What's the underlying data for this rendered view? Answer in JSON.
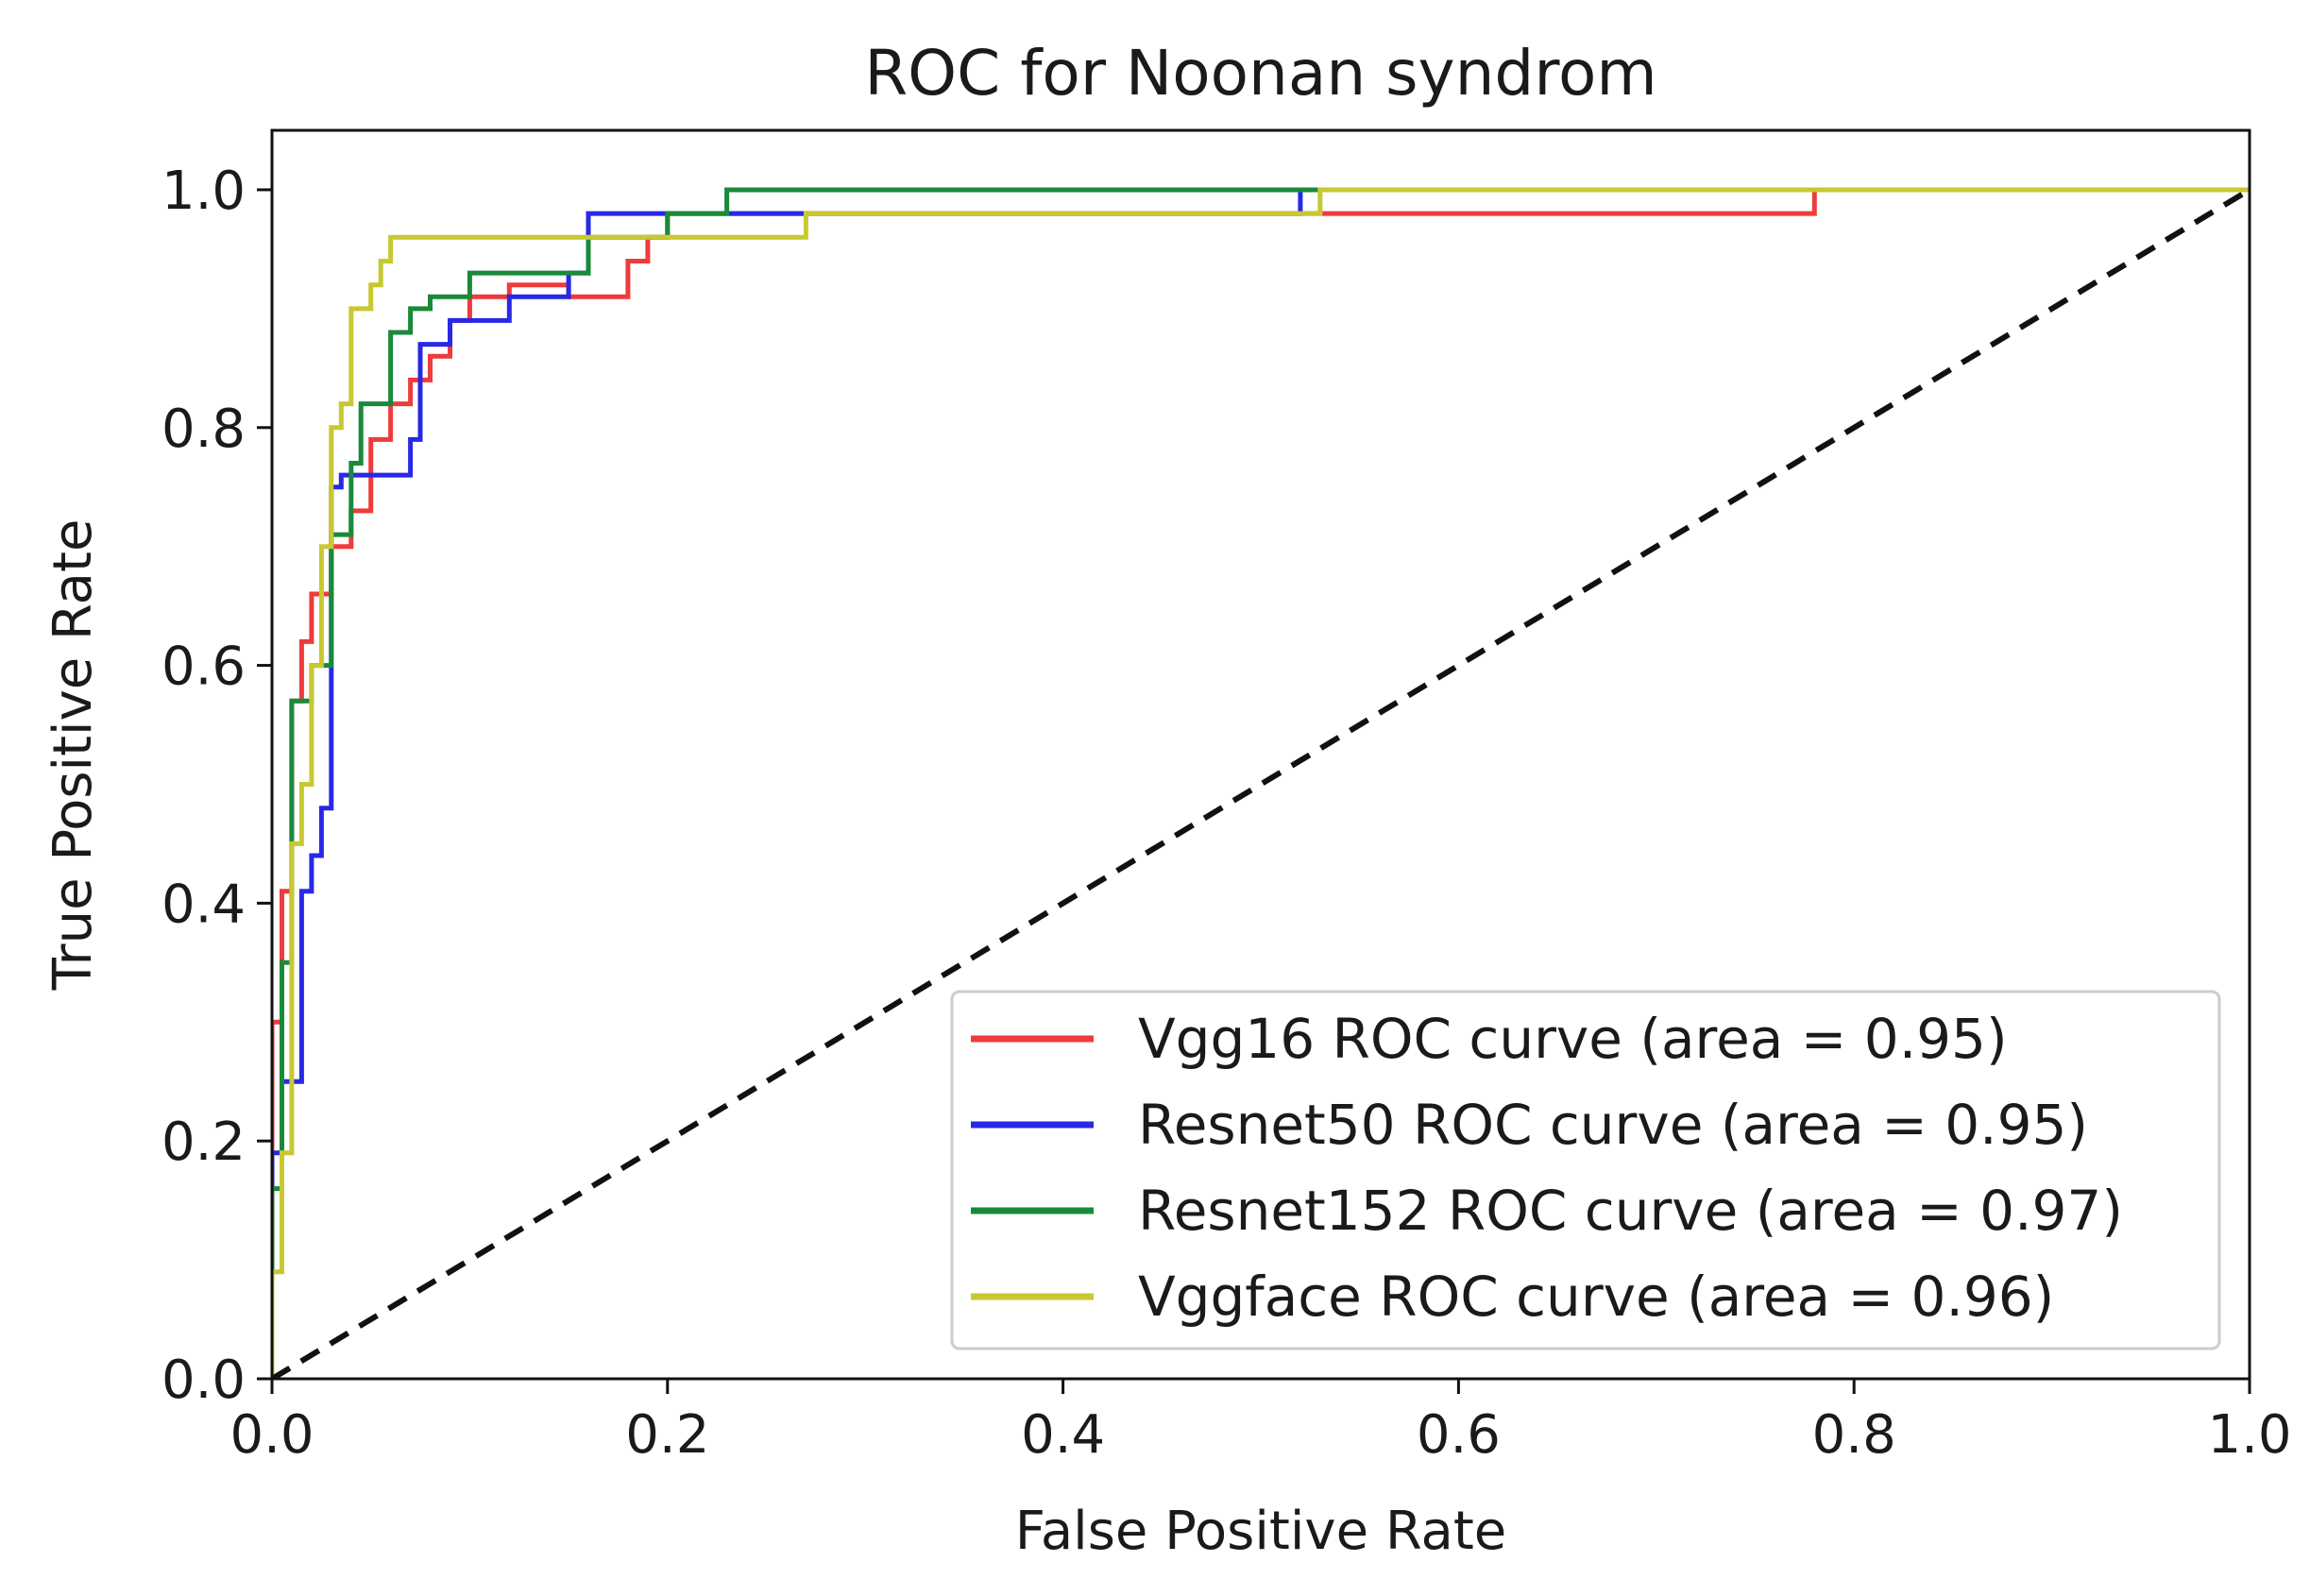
{
  "chart_data": {
    "type": "line",
    "title": "ROC for Noonan syndrom",
    "xlabel": "False Positive Rate",
    "ylabel": "True Positive Rate",
    "xlim": [
      0.0,
      1.0
    ],
    "ylim": [
      0.0,
      1.05
    ],
    "grid": false,
    "legend_position": "lower-right",
    "x_ticks": [
      "0.0",
      "0.2",
      "0.4",
      "0.6",
      "0.8",
      "1.0"
    ],
    "y_ticks": [
      "0.0",
      "0.2",
      "0.4",
      "0.6",
      "0.8",
      "1.0"
    ],
    "series": [
      {
        "name": "Vgg16 ROC curve (area = 0.95)",
        "color": "#ee3b3b",
        "x": [
          0,
          0,
          0.005,
          0.005,
          0.01,
          0.01,
          0.015,
          0.015,
          0.02,
          0.02,
          0.03,
          0.03,
          0.04,
          0.04,
          0.05,
          0.05,
          0.06,
          0.06,
          0.07,
          0.07,
          0.08,
          0.08,
          0.09,
          0.09,
          0.1,
          0.1,
          0.12,
          0.12,
          0.15,
          0.15,
          0.18,
          0.18,
          0.19,
          0.19,
          0.2,
          0.2,
          0.52,
          0.52,
          0.78,
          0.78,
          1.0
        ],
        "y": [
          0,
          0.3,
          0.3,
          0.41,
          0.41,
          0.57,
          0.57,
          0.62,
          0.62,
          0.66,
          0.66,
          0.7,
          0.7,
          0.73,
          0.73,
          0.79,
          0.79,
          0.82,
          0.82,
          0.84,
          0.84,
          0.86,
          0.86,
          0.89,
          0.89,
          0.91,
          0.91,
          0.92,
          0.92,
          0.91,
          0.91,
          0.94,
          0.94,
          0.96,
          0.96,
          0.98,
          0.98,
          0.98,
          0.98,
          1.0,
          1.0
        ]
      },
      {
        "name": "Resnet50 ROC curve (area = 0.95)",
        "color": "#2828e6",
        "x": [
          0,
          0,
          0.005,
          0.005,
          0.015,
          0.015,
          0.02,
          0.02,
          0.025,
          0.025,
          0.03,
          0.03,
          0.035,
          0.035,
          0.06,
          0.06,
          0.07,
          0.07,
          0.075,
          0.075,
          0.09,
          0.09,
          0.12,
          0.12,
          0.15,
          0.15,
          0.16,
          0.16,
          0.2,
          0.2,
          0.26,
          0.26,
          0.52,
          0.52,
          1.0
        ],
        "y": [
          0,
          0.19,
          0.19,
          0.25,
          0.25,
          0.41,
          0.41,
          0.44,
          0.44,
          0.48,
          0.48,
          0.75,
          0.75,
          0.76,
          0.76,
          0.76,
          0.76,
          0.79,
          0.79,
          0.87,
          0.87,
          0.89,
          0.89,
          0.91,
          0.91,
          0.93,
          0.93,
          0.98,
          0.98,
          0.98,
          0.98,
          0.98,
          0.98,
          1.0,
          1.0
        ]
      },
      {
        "name": "Resnet152 ROC curve (area = 0.97)",
        "color": "#1a8a3a",
        "x": [
          0,
          0,
          0.005,
          0.005,
          0.01,
          0.01,
          0.02,
          0.02,
          0.03,
          0.03,
          0.04,
          0.04,
          0.045,
          0.045,
          0.06,
          0.06,
          0.07,
          0.07,
          0.08,
          0.08,
          0.1,
          0.1,
          0.16,
          0.16,
          0.2,
          0.2,
          0.23,
          0.23,
          1.0
        ],
        "y": [
          0,
          0.16,
          0.16,
          0.35,
          0.35,
          0.57,
          0.57,
          0.6,
          0.6,
          0.71,
          0.71,
          0.77,
          0.77,
          0.82,
          0.82,
          0.88,
          0.88,
          0.9,
          0.9,
          0.91,
          0.91,
          0.93,
          0.93,
          0.96,
          0.96,
          0.98,
          0.98,
          1.0,
          1.0
        ]
      },
      {
        "name": "Vggface ROC curve (area = 0.96)",
        "color": "#c8c832",
        "x": [
          0,
          0,
          0.005,
          0.005,
          0.01,
          0.01,
          0.015,
          0.015,
          0.02,
          0.02,
          0.025,
          0.025,
          0.03,
          0.03,
          0.035,
          0.035,
          0.04,
          0.04,
          0.05,
          0.05,
          0.055,
          0.055,
          0.06,
          0.06,
          0.2,
          0.2,
          0.27,
          0.27,
          0.53,
          0.53,
          1.0
        ],
        "y": [
          0,
          0.09,
          0.09,
          0.19,
          0.19,
          0.45,
          0.45,
          0.5,
          0.5,
          0.6,
          0.6,
          0.7,
          0.7,
          0.8,
          0.8,
          0.82,
          0.82,
          0.9,
          0.9,
          0.92,
          0.92,
          0.94,
          0.94,
          0.96,
          0.96,
          0.96,
          0.96,
          0.98,
          0.98,
          1.0,
          1.0
        ]
      },
      {
        "name": "chance",
        "color": "#111111",
        "dashed": true,
        "x": [
          0,
          1
        ],
        "y": [
          0,
          1
        ]
      }
    ]
  }
}
